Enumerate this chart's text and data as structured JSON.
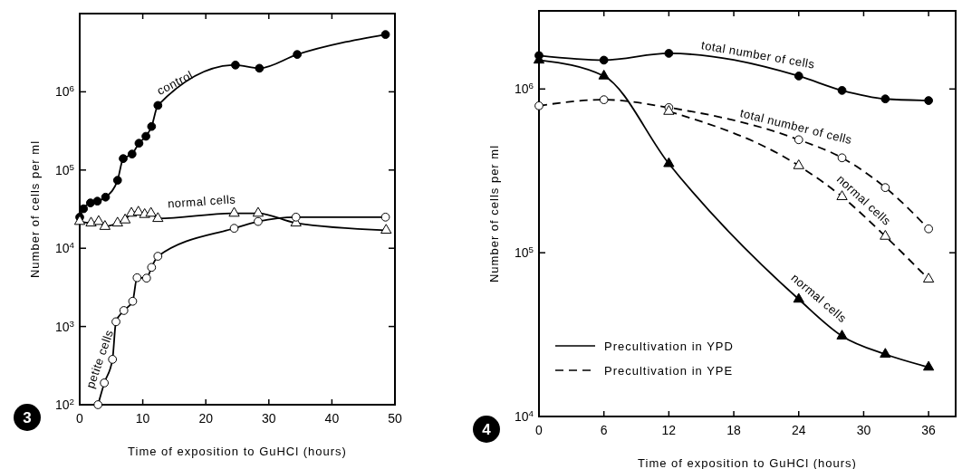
{
  "chart_data": [
    {
      "type": "line",
      "xlabel": "Time of exposition to GuHCl (hours)",
      "ylabel": "Number of cells per ml",
      "log": true,
      "xlim": [
        0,
        50
      ],
      "xticks": [
        0,
        10,
        20,
        30,
        40,
        50
      ],
      "ylim": [
        100,
        10000000
      ],
      "yticks": [
        {
          "value": 100,
          "label": "10$^{2}$"
        },
        {
          "value": 1000,
          "label": "10$^{3}$"
        },
        {
          "value": 10000,
          "label": "10$^{4}$"
        },
        {
          "value": 100000,
          "label": "10$^{5}$"
        },
        {
          "value": 1000000,
          "label": "10$^{6}$"
        }
      ],
      "line_style": "solid",
      "series": [
        {
          "name": "control",
          "color": "#000000",
          "marker": "circle",
          "x": [
            0,
            0.6,
            1.7,
            2.8,
            4.1,
            6,
            6.9,
            8.3,
            9.4,
            10.5,
            11.4,
            12.4,
            24.7,
            28.5,
            34.5,
            48.5
          ],
          "values": [
            25000,
            32000,
            38000,
            40000,
            45000,
            74000,
            140000,
            160000,
            220000,
            270000,
            360000,
            670000,
            2200000,
            2000000,
            3000000,
            5400000
          ]
        },
        {
          "name": "normal cells",
          "color": "#ffffff",
          "marker": "triangle",
          "x": [
            0,
            1.8,
            3,
            4,
            6,
            7.2,
            8.2,
            9.3,
            10.3,
            11.3,
            12.4,
            24.5,
            28.3,
            34.3,
            48.6
          ],
          "values": [
            22000,
            21000,
            22000,
            19000,
            21000,
            23000,
            28000,
            29000,
            27000,
            28000,
            24000,
            28000,
            28000,
            21000,
            17000
          ]
        },
        {
          "name": "petite cells",
          "color": "#ffffff",
          "marker": "circle",
          "x": [
            2.9,
            3.9,
            5.2,
            5.75,
            7,
            8.4,
            9.1,
            10.6,
            11.4,
            12.4,
            24.5,
            28.3,
            34.3,
            48.5
          ],
          "values": [
            100,
            190,
            380,
            1150,
            1600,
            2100,
            4200,
            4150,
            5700,
            7900,
            18000,
            22000,
            25000,
            25000
          ]
        }
      ],
      "annotations": [
        "3"
      ]
    },
    {
      "type": "line",
      "xlabel": "Time of exposition to GuHCl (hours)",
      "ylabel": "Number of cells per ml",
      "log": true,
      "xlim": [
        0,
        38.5
      ],
      "xticks": [
        0,
        6,
        12,
        18,
        24,
        30,
        36
      ],
      "ylim": [
        10000,
        3000000
      ],
      "yticks": [
        {
          "value": 10000,
          "label": "10$^{4}$"
        },
        {
          "value": 100000,
          "label": "10$^{5}$"
        },
        {
          "value": 1000000,
          "label": "10$^{6}$"
        }
      ],
      "series": [
        {
          "name": "total number of cells",
          "color": "#000000",
          "marker": "circle",
          "line_style": "solid",
          "x": [
            0,
            6,
            12,
            24,
            28,
            32,
            36
          ],
          "values": [
            1600000,
            1500000,
            1650000,
            1200000,
            980000,
            870000,
            850000
          ]
        },
        {
          "name": "total number of cells",
          "color": "#ffffff",
          "marker": "circle",
          "line_style": "dashed",
          "x": [
            0,
            6,
            12,
            24,
            28,
            32,
            36
          ],
          "values": [
            790000,
            860000,
            770000,
            490000,
            380000,
            250000,
            140000
          ]
        },
        {
          "name": "normal cells",
          "color": "#ffffff",
          "marker": "triangle",
          "line_style": "dashed",
          "x": [
            12,
            24,
            28,
            32,
            36
          ],
          "values": [
            730000,
            340000,
            220000,
            126000,
            69000
          ]
        },
        {
          "name": "normal cells",
          "color": "#000000",
          "marker": "triangle",
          "line_style": "solid",
          "x": [
            0,
            6,
            12,
            24,
            28,
            32,
            36
          ],
          "values": [
            1500000,
            1200000,
            350000,
            52000,
            31000,
            24000,
            20000
          ]
        }
      ],
      "annotations": [
        "4",
        "Precultivation in YPD",
        "Precultivation in YPE"
      ]
    }
  ]
}
